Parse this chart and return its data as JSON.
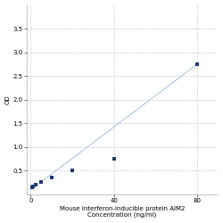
{
  "title": "",
  "xlabel_line1": "Mouse Interferon-inducible protein AIM2",
  "xlabel_line2": "Concentration (ng/ml)",
  "ylabel": "OD",
  "x_data": [
    0.625,
    1.25,
    2.5,
    5,
    10,
    20,
    40,
    80
  ],
  "y_data": [
    0.148,
    0.175,
    0.21,
    0.265,
    0.36,
    0.51,
    0.75,
    2.75
  ],
  "fit_x": [
    0,
    80
  ],
  "fit_y": [
    0.1,
    2.75
  ],
  "point_color": "#1F3A6E",
  "line_color": "#A8C8E8",
  "marker": "s",
  "marker_size": 3,
  "xlim": [
    -2,
    90
  ],
  "ylim": [
    0,
    4.0
  ],
  "yticks": [
    0.5,
    1.0,
    1.5,
    2.0,
    2.5,
    3.0,
    3.5
  ],
  "xticks": [
    0,
    40,
    80
  ],
  "grid_color": "#CCCCCC",
  "background_color": "#FFFFFF",
  "tick_fontsize": 5,
  "label_fontsize": 5
}
